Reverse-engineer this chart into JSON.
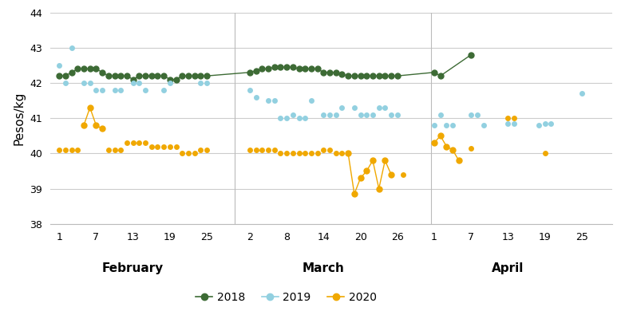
{
  "ylabel": "Pesos/kg",
  "ylim": [
    38,
    44
  ],
  "yticks": [
    38,
    39,
    40,
    41,
    42,
    43,
    44
  ],
  "background_color": "#ffffff",
  "grid_color": "#cccccc",
  "xlim": [
    -0.5,
    91
  ],
  "xtick_positions": [
    1,
    7,
    13,
    19,
    25,
    32,
    38,
    44,
    50,
    56,
    62,
    68,
    74,
    80,
    86
  ],
  "xtick_labels": [
    "1",
    "7",
    "13",
    "19",
    "25",
    "2",
    "8",
    "14",
    "20",
    "26",
    "1",
    "7",
    "13",
    "19",
    "25"
  ],
  "month_label_positions": [
    {
      "label": "February",
      "x": 13
    },
    {
      "label": "March",
      "x": 44
    },
    {
      "label": "April",
      "x": 74
    }
  ],
  "vline_positions": [
    29.5,
    61.5
  ],
  "series_2018": {
    "color": "#3d6b35",
    "marker": "o",
    "markersize": 5,
    "linewidth": 1.0,
    "x": [
      1,
      2,
      3,
      4,
      5,
      6,
      7,
      8,
      9,
      10,
      11,
      12,
      13,
      14,
      15,
      16,
      17,
      18,
      19,
      20,
      21,
      22,
      23,
      24,
      25,
      32,
      33,
      34,
      35,
      36,
      37,
      38,
      39,
      40,
      41,
      42,
      43,
      44,
      45,
      46,
      47,
      48,
      49,
      50,
      51,
      52,
      53,
      54,
      55,
      56,
      62,
      63,
      68
    ],
    "y": [
      42.2,
      42.2,
      42.3,
      42.4,
      42.4,
      42.4,
      42.4,
      42.3,
      42.2,
      42.2,
      42.2,
      42.2,
      42.1,
      42.2,
      42.2,
      42.2,
      42.2,
      42.2,
      42.1,
      42.1,
      42.2,
      42.2,
      42.2,
      42.2,
      42.2,
      42.3,
      42.35,
      42.4,
      42.4,
      42.45,
      42.45,
      42.45,
      42.45,
      42.4,
      42.4,
      42.4,
      42.4,
      42.3,
      42.3,
      42.3,
      42.25,
      42.2,
      42.2,
      42.2,
      42.2,
      42.2,
      42.2,
      42.2,
      42.2,
      42.2,
      42.3,
      42.2,
      42.8
    ]
  },
  "series_2019": {
    "color": "#92d0e0",
    "marker": "o",
    "markersize": 5,
    "x": [
      1,
      2,
      3,
      5,
      6,
      7,
      8,
      10,
      11,
      13,
      14,
      15,
      18,
      19,
      24,
      25,
      32,
      33,
      35,
      36,
      37,
      38,
      39,
      40,
      41,
      42,
      44,
      45,
      46,
      47,
      49,
      50,
      51,
      52,
      53,
      54,
      55,
      56,
      62,
      63,
      64,
      65,
      68,
      69,
      70,
      74,
      75,
      79,
      80,
      81,
      86
    ],
    "y": [
      42.5,
      42.0,
      43.0,
      42.0,
      42.0,
      41.8,
      41.8,
      41.8,
      41.8,
      42.0,
      42.0,
      41.8,
      41.8,
      42.0,
      42.0,
      42.0,
      41.8,
      41.6,
      41.5,
      41.5,
      41.0,
      41.0,
      41.1,
      41.0,
      41.0,
      41.5,
      41.1,
      41.1,
      41.1,
      41.3,
      41.3,
      41.1,
      41.1,
      41.1,
      41.3,
      41.3,
      41.1,
      41.1,
      40.8,
      41.1,
      40.8,
      40.8,
      41.1,
      41.1,
      40.8,
      40.85,
      40.85,
      40.8,
      40.85,
      40.85,
      41.7
    ]
  },
  "series_2020_scatter": {
    "color": "#f0a800",
    "marker": "o",
    "markersize": 5,
    "x": [
      1,
      2,
      3,
      4,
      5,
      6,
      7,
      8,
      9,
      10,
      11,
      12,
      13,
      14,
      15,
      16,
      17,
      18,
      19,
      20,
      21,
      22,
      23,
      24,
      25,
      32,
      33,
      34,
      35,
      36,
      37,
      38,
      39,
      40,
      41,
      42,
      43,
      44,
      45,
      46,
      47,
      48,
      50,
      51,
      52,
      53,
      54,
      55,
      57,
      62,
      63,
      64,
      65,
      66,
      68,
      74,
      75,
      80
    ],
    "y": [
      40.1,
      40.1,
      40.1,
      40.1,
      40.8,
      41.3,
      40.8,
      40.7,
      40.1,
      40.1,
      40.1,
      40.3,
      40.3,
      40.3,
      40.3,
      40.2,
      40.2,
      40.2,
      40.2,
      40.2,
      40.0,
      40.0,
      40.0,
      40.1,
      40.1,
      40.1,
      40.1,
      40.1,
      40.1,
      40.1,
      40.0,
      40.0,
      40.0,
      40.0,
      40.0,
      40.0,
      40.0,
      40.1,
      40.1,
      40.0,
      40.0,
      40.0,
      39.3,
      39.5,
      39.8,
      39.0,
      39.8,
      39.4,
      39.4,
      40.3,
      40.5,
      40.2,
      40.1,
      39.8,
      40.15,
      41.0,
      41.0,
      40.0
    ]
  },
  "series_2020_lines": {
    "color": "#f0a800",
    "linewidth": 1.0,
    "segments": [
      {
        "x": [
          5,
          6,
          7,
          8
        ],
        "y": [
          40.8,
          41.3,
          40.8,
          40.7
        ]
      },
      {
        "x": [
          48,
          49,
          50,
          51,
          52,
          53,
          54,
          55
        ],
        "y": [
          40.0,
          38.85,
          39.3,
          39.5,
          39.8,
          39.0,
          39.8,
          39.4
        ]
      },
      {
        "x": [
          62,
          63,
          64,
          65,
          66
        ],
        "y": [
          40.3,
          40.5,
          40.2,
          40.1,
          39.8
        ]
      }
    ]
  },
  "legend": [
    {
      "label": "2018",
      "color": "#3d6b35"
    },
    {
      "label": "2019",
      "color": "#92d0e0"
    },
    {
      "label": "2020",
      "color": "#f0a800"
    }
  ]
}
